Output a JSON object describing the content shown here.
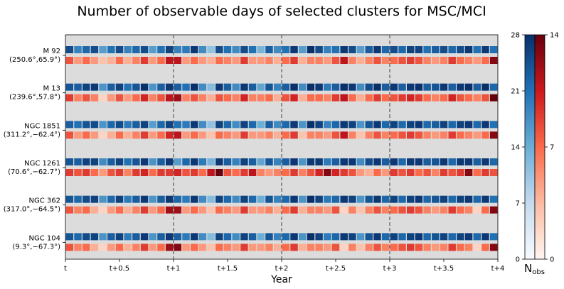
{
  "chart_data": {
    "type": "heatmap",
    "title": "Number of observable days of selected clusters for MSC/MCI",
    "xlabel": "Year",
    "xlim": [
      0,
      4
    ],
    "x_ticks": [
      0,
      0.5,
      1,
      1.5,
      2,
      2.5,
      3,
      3.5,
      4
    ],
    "x_tick_labels": [
      "t",
      "t+0.5",
      "t+1",
      "t+1.5",
      "t+2",
      "t+2.5",
      "t+3",
      "t+3.5",
      "t+4"
    ],
    "year_dividers": [
      1,
      2,
      3
    ],
    "bins_per_year": 13,
    "clusters": [
      {
        "name": "M 92",
        "coords": "(250.6°,65.9°)",
        "blue_row": [
          25,
          19,
          22,
          25,
          16,
          21,
          25,
          19,
          22,
          25,
          16,
          21,
          26,
          19,
          20,
          27,
          18,
          11,
          25,
          21,
          18,
          25,
          21,
          13,
          23,
          18,
          21,
          27,
          16,
          28,
          25,
          19,
          21,
          27,
          25,
          16,
          23,
          27,
          22,
          25,
          22,
          26,
          26,
          21,
          23,
          25,
          22,
          25,
          27,
          21,
          27,
          21
        ],
        "red_row": [
          8,
          5,
          7,
          5,
          3,
          4,
          7,
          4,
          6,
          9,
          5,
          7,
          11,
          11,
          5,
          7,
          5,
          4,
          7,
          6,
          5,
          9,
          5,
          5,
          6,
          4,
          7,
          9,
          4,
          6,
          6,
          5,
          8,
          11,
          6,
          4,
          6,
          8,
          6,
          7,
          8,
          9,
          8,
          6,
          5,
          6,
          9,
          7,
          6,
          5,
          7,
          13
        ]
      },
      {
        "name": "M 13",
        "coords": "(239.6°,57.8°)",
        "blue_row": [
          24,
          23,
          26,
          27,
          17,
          23,
          26,
          21,
          24,
          28,
          17,
          23,
          27,
          23,
          21,
          28,
          18,
          12,
          27,
          23,
          18,
          27,
          23,
          15,
          24,
          19,
          23,
          28,
          18,
          28,
          27,
          20,
          23,
          28,
          27,
          18,
          25,
          28,
          23,
          27,
          23,
          27,
          28,
          23,
          24,
          27,
          23,
          27,
          28,
          23,
          28,
          22
        ],
        "red_row": [
          9,
          6,
          8,
          6,
          2,
          5,
          8,
          5,
          7,
          10,
          6,
          8,
          11,
          12,
          6,
          8,
          6,
          4,
          8,
          7,
          6,
          10,
          6,
          6,
          7,
          4,
          8,
          10,
          4,
          7,
          7,
          6,
          9,
          11,
          7,
          4,
          7,
          9,
          7,
          8,
          9,
          10,
          9,
          7,
          6,
          7,
          10,
          8,
          7,
          6,
          8,
          14
        ]
      },
      {
        "name": "NGC 1851",
        "coords": "(311.2°,−62.4°)",
        "blue_row": [
          23,
          21,
          24,
          25,
          17,
          22,
          25,
          20,
          23,
          26,
          16,
          22,
          26,
          21,
          20,
          27,
          18,
          11,
          26,
          22,
          18,
          26,
          22,
          14,
          23,
          18,
          22,
          27,
          17,
          28,
          26,
          19,
          22,
          27,
          26,
          17,
          24,
          27,
          22,
          26,
          22,
          26,
          27,
          22,
          23,
          26,
          22,
          26,
          27,
          22,
          27,
          21
        ],
        "red_row": [
          8,
          5,
          7,
          5,
          2,
          4,
          7,
          4,
          6,
          9,
          5,
          7,
          10,
          11,
          5,
          7,
          5,
          3,
          7,
          6,
          5,
          9,
          5,
          5,
          6,
          4,
          7,
          9,
          3,
          6,
          6,
          5,
          8,
          11,
          6,
          3,
          6,
          8,
          6,
          7,
          8,
          9,
          8,
          6,
          5,
          6,
          9,
          7,
          6,
          5,
          7,
          13
        ]
      },
      {
        "name": "NGC 1261",
        "coords": "(70.6°,−62.7°)",
        "blue_row": [
          24,
          23,
          26,
          26,
          18,
          23,
          26,
          21,
          24,
          27,
          17,
          23,
          27,
          16,
          22,
          27,
          20,
          13,
          27,
          23,
          19,
          26,
          23,
          15,
          24,
          19,
          23,
          27,
          17,
          27,
          27,
          20,
          23,
          27,
          27,
          18,
          25,
          27,
          23,
          27,
          22,
          27,
          27,
          23,
          24,
          27,
          22,
          27,
          27,
          23,
          27,
          22
        ],
        "red_row": [
          9,
          8,
          9,
          7,
          5,
          8,
          9,
          6,
          9,
          10,
          7,
          9,
          9,
          10,
          8,
          9,
          7,
          11,
          14,
          8,
          7,
          9,
          11,
          6,
          5,
          6,
          7,
          9,
          6,
          8,
          10,
          13,
          10,
          9,
          8,
          5,
          4,
          7,
          5,
          9,
          8,
          9,
          7,
          8,
          6,
          9,
          8,
          9,
          13,
          7,
          9,
          8
        ]
      },
      {
        "name": "NGC 362",
        "coords": "(317.0°,−64.5°)",
        "blue_row": [
          24,
          22,
          25,
          26,
          17,
          22,
          26,
          20,
          23,
          27,
          17,
          23,
          27,
          22,
          20,
          27,
          18,
          12,
          26,
          22,
          18,
          26,
          22,
          14,
          24,
          19,
          22,
          27,
          17,
          28,
          26,
          20,
          22,
          27,
          26,
          17,
          24,
          27,
          22,
          26,
          22,
          26,
          27,
          22,
          24,
          26,
          22,
          26,
          27,
          22,
          27,
          21
        ],
        "red_row": [
          8,
          6,
          7,
          4,
          2,
          5,
          7,
          4,
          6,
          9,
          5,
          7,
          12,
          12,
          5,
          7,
          5,
          3,
          7,
          6,
          5,
          9,
          5,
          5,
          6,
          4,
          7,
          9,
          4,
          6,
          6,
          5,
          8,
          2,
          6,
          3,
          6,
          8,
          6,
          7,
          8,
          9,
          8,
          6,
          5,
          6,
          9,
          7,
          6,
          2,
          7,
          13
        ]
      },
      {
        "name": "NGC 104",
        "coords": "(9.3°,−67.3°)",
        "blue_row": [
          24,
          22,
          25,
          26,
          17,
          23,
          26,
          20,
          23,
          27,
          17,
          23,
          27,
          23,
          20,
          27,
          18,
          12,
          26,
          22,
          18,
          26,
          23,
          14,
          24,
          19,
          22,
          27,
          17,
          28,
          26,
          20,
          22,
          27,
          26,
          17,
          24,
          27,
          22,
          26,
          22,
          26,
          27,
          22,
          24,
          26,
          22,
          26,
          27,
          22,
          27,
          21
        ],
        "red_row": [
          8,
          6,
          7,
          4,
          2,
          5,
          7,
          4,
          6,
          9,
          5,
          7,
          12,
          13,
          5,
          7,
          5,
          3,
          7,
          6,
          5,
          9,
          5,
          5,
          6,
          4,
          7,
          9,
          4,
          6,
          6,
          5,
          8,
          2,
          6,
          3,
          6,
          8,
          6,
          7,
          8,
          9,
          8,
          6,
          5,
          6,
          9,
          7,
          6,
          2,
          7,
          13
        ]
      }
    ],
    "colorbars": [
      {
        "name": "Blues",
        "range": [
          0,
          28
        ],
        "ticks": [
          0,
          7,
          14,
          21,
          28
        ]
      },
      {
        "name": "Reds",
        "range": [
          0,
          14
        ],
        "ticks": [
          0,
          7,
          14
        ]
      }
    ],
    "colorbar_label": "N",
    "colorbar_label_sub": "obs",
    "background_color": "#dcdcdc",
    "divider_color": "#666666"
  }
}
